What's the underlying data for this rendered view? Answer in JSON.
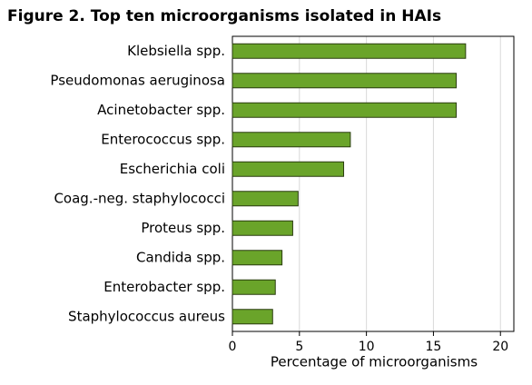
{
  "chart_data": {
    "type": "bar",
    "orientation": "horizontal",
    "title": "Figure 2. Top ten microorganisms isolated in HAIs",
    "x_label": "Percentage of microorganisms",
    "categories": [
      "Klebsiella spp.",
      "Pseudomonas aeruginosa",
      "Acinetobacter spp.",
      "Enterococcus spp.",
      "Escherichia coli",
      "Coag.-neg. staphylococci",
      "Proteus spp.",
      "Candida spp.",
      "Enterobacter spp.",
      "Staphylococcus aureus"
    ],
    "values": [
      17.4,
      16.7,
      16.7,
      8.8,
      8.3,
      4.9,
      4.5,
      3.7,
      3.2,
      3.0
    ],
    "color": "#6aa42a",
    "xlim": [
      0,
      21
    ],
    "xticks": [
      0,
      5,
      10,
      15,
      20
    ],
    "grid": true
  }
}
